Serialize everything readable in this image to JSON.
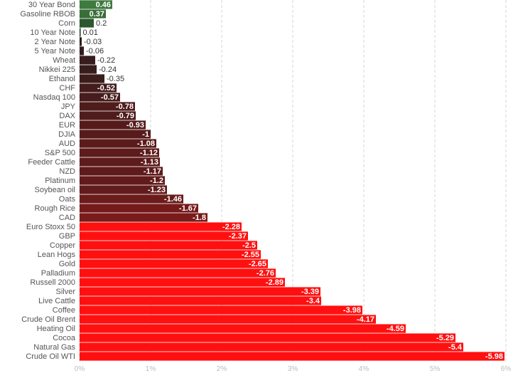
{
  "chart_data": {
    "type": "bar",
    "orientation": "horizontal",
    "title": "",
    "xlabel": "",
    "ylabel": "",
    "xlim": [
      0,
      6
    ],
    "x_ticks": [
      "0%",
      "1%",
      "2%",
      "3%",
      "4%",
      "5%",
      "6%"
    ],
    "grid": "vertical dashed",
    "categories": [
      "30 Year Bond",
      "Gasoline RBOB",
      "Corn",
      "10 Year Note",
      "2 Year Note",
      "5 Year Note",
      "Wheat",
      "Nikkei 225",
      "Ethanol",
      "CHF",
      "Nasdaq 100",
      "JPY",
      "DAX",
      "EUR",
      "DJIA",
      "AUD",
      "S&P 500",
      "Feeder Cattle",
      "NZD",
      "Platinum",
      "Soybean oil",
      "Oats",
      "Rough Rice",
      "CAD",
      "Euro Stoxx 50",
      "GBP",
      "Copper",
      "Lean Hogs",
      "Gold",
      "Palladium",
      "Russell 2000",
      "Silver",
      "Live Cattle",
      "Coffee",
      "Crude Oil Brent",
      "Heating Oil",
      "Cocoa",
      "Natural Gas",
      "Crude Oil WTI"
    ],
    "values": [
      0.46,
      0.37,
      0.2,
      0.01,
      -0.03,
      -0.06,
      -0.22,
      -0.24,
      -0.35,
      -0.52,
      -0.57,
      -0.78,
      -0.79,
      -0.93,
      -1,
      -1.08,
      -1.12,
      -1.13,
      -1.17,
      -1.2,
      -1.23,
      -1.46,
      -1.67,
      -1.8,
      -2.28,
      -2.37,
      -2.5,
      -2.55,
      -2.65,
      -2.76,
      -2.89,
      -3.39,
      -3.4,
      -3.98,
      -4.17,
      -4.59,
      -5.29,
      -5.4,
      -5.98
    ],
    "value_labels": [
      "0.46",
      "0.37",
      "0.2",
      "0.01",
      "-0.03",
      "-0.06",
      "-0.22",
      "-0.24",
      "-0.35",
      "-0.52",
      "-0.57",
      "-0.78",
      "-0.79",
      "-0.93",
      "-1",
      "-1.08",
      "-1.12",
      "-1.13",
      "-1.17",
      "-1.2",
      "-1.23",
      "-1.46",
      "-1.67",
      "-1.8",
      "-2.28",
      "-2.37",
      "-2.5",
      "-2.55",
      "-2.65",
      "-2.76",
      "-2.89",
      "-3.39",
      "-3.4",
      "-3.98",
      "-4.17",
      "-4.59",
      "-5.29",
      "-5.4",
      "-5.98"
    ],
    "colors": {
      "positive_dark": "#1f3d21",
      "positive_light": "#3f7a3f",
      "negative_dark": "#2e1d1d",
      "negative_mid": "#7a1a1a",
      "negative_bright": "#ff1010",
      "grid": "#d5d5d5",
      "axis_text": "#bbbbbb",
      "category_text": "#555555"
    }
  }
}
